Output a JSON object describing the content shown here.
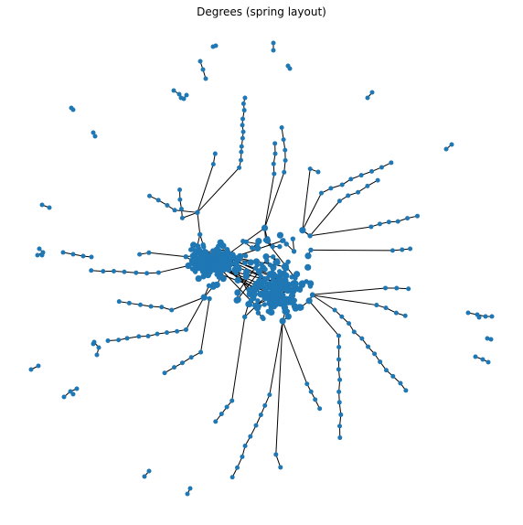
{
  "title": "Degrees (spring layout)",
  "colors": {
    "node": "#1f77b4",
    "edge": "#000000",
    "background": "#ffffff"
  },
  "graph": {
    "layout": "spring",
    "axes_visible": false,
    "node_shape": "circle",
    "components_shown": 30
  }
}
